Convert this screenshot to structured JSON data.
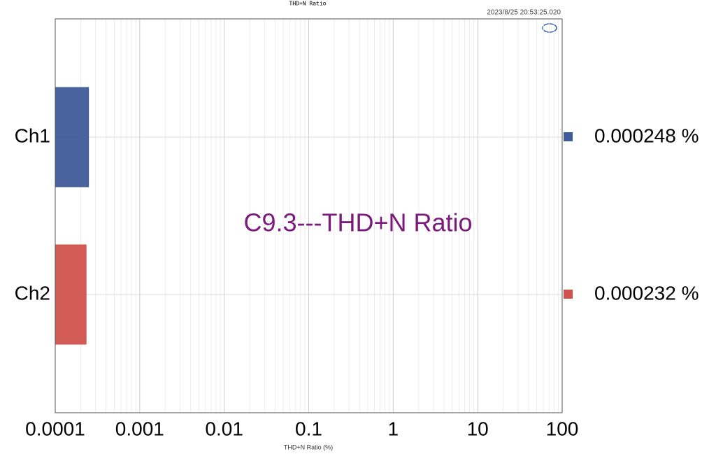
{
  "chart_data": {
    "type": "bar",
    "orientation": "horizontal",
    "title": "THD+N Ratio",
    "timestamp": "2023/8/25 20:53:25.020",
    "annotation": "C9.3---THD+N Ratio",
    "xlabel": "THD+N Ratio (%)",
    "categories": [
      "Ch1",
      "Ch2"
    ],
    "values": [
      0.000248,
      0.000232
    ],
    "value_labels": [
      "0.000248 %",
      "0.000232 %"
    ],
    "colors": [
      "#3f5b9a",
      "#d0524c"
    ],
    "xscale": "log",
    "xlim": [
      0.0001,
      100
    ],
    "xticks": [
      0.0001,
      0.001,
      0.01,
      0.1,
      1,
      10,
      100
    ],
    "grid": true
  }
}
